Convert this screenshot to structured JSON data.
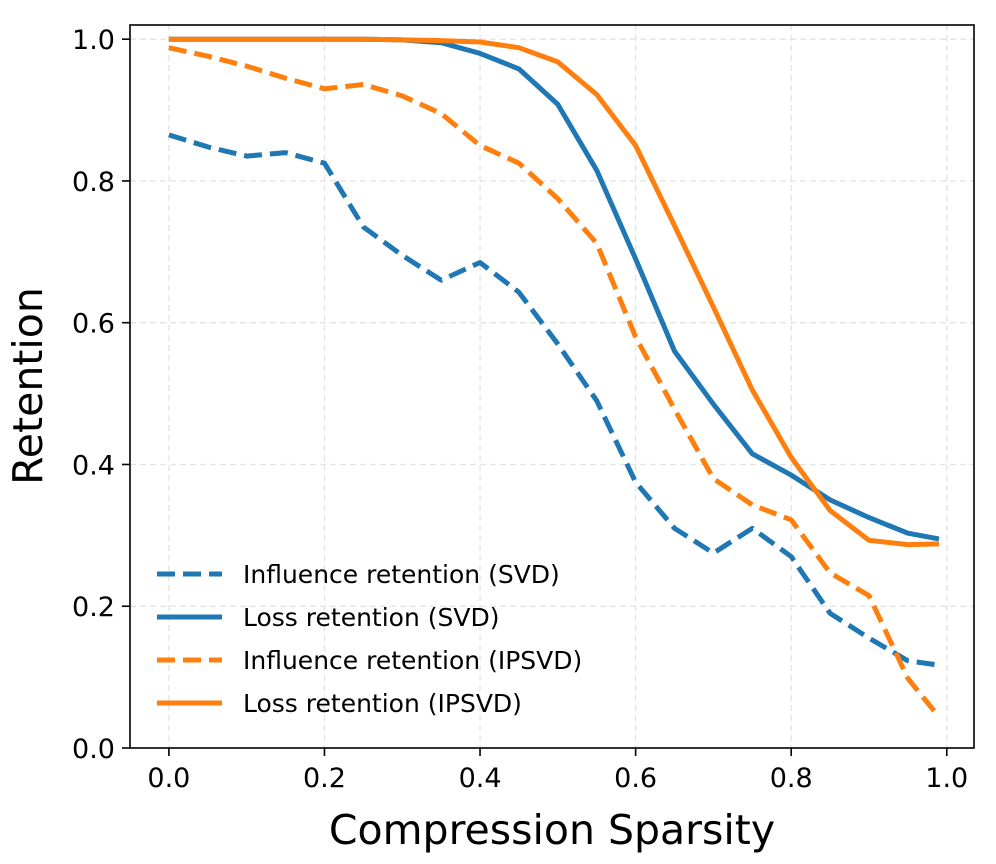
{
  "chart_data": {
    "type": "line",
    "title": "",
    "xlabel": "Compression Sparsity",
    "ylabel": "Retention",
    "xlim": [
      -0.05,
      1.035
    ],
    "ylim": [
      0.0,
      1.02
    ],
    "xticks": [
      0.0,
      0.2,
      0.4,
      0.6,
      0.8,
      1.0
    ],
    "xtick_labels": [
      "0.0",
      "0.2",
      "0.4",
      "0.6",
      "0.8",
      "1.0"
    ],
    "yticks": [
      0.0,
      0.2,
      0.4,
      0.6,
      0.8,
      1.0
    ],
    "ytick_labels": [
      "0.0",
      "0.2",
      "0.4",
      "0.6",
      "0.8",
      "1.0"
    ],
    "grid": true,
    "legend_position": "lower-left",
    "x": [
      0.0,
      0.05,
      0.1,
      0.15,
      0.2,
      0.25,
      0.3,
      0.35,
      0.4,
      0.45,
      0.5,
      0.55,
      0.6,
      0.65,
      0.7,
      0.75,
      0.8,
      0.85,
      0.9,
      0.95,
      0.99
    ],
    "series": [
      {
        "name": "Influence retention (SVD)",
        "color": "#1f77b4",
        "style": "dashed",
        "values": [
          0.865,
          0.848,
          0.835,
          0.84,
          0.825,
          0.735,
          0.695,
          0.66,
          0.685,
          0.643,
          0.57,
          0.49,
          0.375,
          0.31,
          0.275,
          0.31,
          0.27,
          0.19,
          0.155,
          0.123,
          0.117
        ]
      },
      {
        "name": "Loss retention (SVD)",
        "color": "#1f77b4",
        "style": "solid",
        "values": [
          1.0,
          1.0,
          1.0,
          1.0,
          1.0,
          1.0,
          0.999,
          0.995,
          0.98,
          0.958,
          0.908,
          0.815,
          0.69,
          0.56,
          0.485,
          0.415,
          0.385,
          0.35,
          0.325,
          0.303,
          0.295
        ]
      },
      {
        "name": "Influence retention (IPSVD)",
        "color": "#ff7f0e",
        "style": "dashed",
        "values": [
          0.988,
          0.976,
          0.962,
          0.945,
          0.93,
          0.936,
          0.92,
          0.895,
          0.85,
          0.825,
          0.775,
          0.712,
          0.58,
          0.478,
          0.38,
          0.343,
          0.322,
          0.247,
          0.215,
          0.098,
          0.044
        ]
      },
      {
        "name": "Loss retention (IPSVD)",
        "color": "#ff7f0e",
        "style": "solid",
        "values": [
          1.0,
          1.0,
          1.0,
          1.0,
          1.0,
          1.0,
          0.999,
          0.998,
          0.996,
          0.988,
          0.968,
          0.922,
          0.85,
          0.737,
          0.622,
          0.505,
          0.41,
          0.335,
          0.293,
          0.287,
          0.288
        ]
      }
    ]
  }
}
